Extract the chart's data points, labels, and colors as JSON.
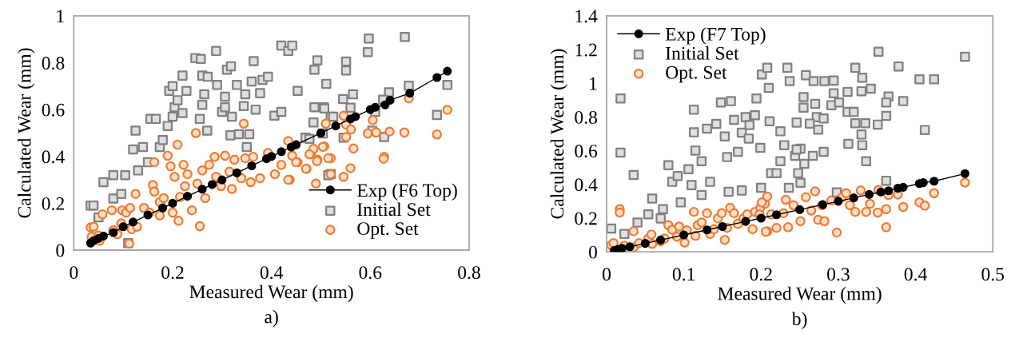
{
  "chart_data": [
    {
      "type": "scatter",
      "xlabel": "Measured Wear (mm)",
      "ylabel": "Calculated Wear (mm)",
      "annotations": [
        "a)"
      ],
      "xlim": [
        0,
        0.8
      ],
      "ylim": [
        0,
        1
      ],
      "xticks": [
        0,
        0.2,
        0.4,
        0.6,
        0.8
      ],
      "yticks": [
        0,
        0.2,
        0.4,
        0.6,
        0.8,
        1
      ],
      "grid": false,
      "legend": "bottom right",
      "series": [
        {
          "name": "Exp (F6 Top)",
          "type": "line",
          "marker": "circle",
          "line_style": "solid",
          "color": "#000000",
          "x": [
            0.034,
            0.04,
            0.05,
            0.06,
            0.08,
            0.1,
            0.12,
            0.15,
            0.18,
            0.2,
            0.23,
            0.26,
            0.28,
            0.3,
            0.33,
            0.36,
            0.39,
            0.4,
            0.42,
            0.44,
            0.45,
            0.5,
            0.53,
            0.56,
            0.57,
            0.6,
            0.61,
            0.63,
            0.64,
            0.68,
            0.735,
            0.756
          ],
          "values": [
            0.03,
            0.04,
            0.05,
            0.06,
            0.075,
            0.1,
            0.12,
            0.15,
            0.18,
            0.2,
            0.23,
            0.26,
            0.28,
            0.3,
            0.33,
            0.36,
            0.39,
            0.4,
            0.42,
            0.44,
            0.45,
            0.5,
            0.53,
            0.56,
            0.57,
            0.6,
            0.61,
            0.62,
            0.64,
            0.67,
            0.737,
            0.764
          ]
        },
        {
          "name": "Initial Set",
          "marker": "square",
          "color": "#808080",
          "x": [
            0.034,
            0.04,
            0.05,
            0.06,
            0.08,
            0.08,
            0.096,
            0.104,
            0.11,
            0.12,
            0.125,
            0.13,
            0.14,
            0.155,
            0.166,
            0.15,
            0.174,
            0.18,
            0.19,
            0.193,
            0.2,
            0.204,
            0.2,
            0.21,
            0.22,
            0.22,
            0.228,
            0.246,
            0.257,
            0.26,
            0.26,
            0.255,
            0.264,
            0.27,
            0.271,
            0.288,
            0.29,
            0.3,
            0.306,
            0.31,
            0.318,
            0.306,
            0.317,
            0.32,
            0.33,
            0.334,
            0.344,
            0.347,
            0.355,
            0.36,
            0.364,
            0.368,
            0.377,
            0.382,
            0.393,
            0.35,
            0.406,
            0.42,
            0.42,
            0.434,
            0.442,
            0.453,
            0.469,
            0.485,
            0.487,
            0.493,
            0.487,
            0.506,
            0.511,
            0.52,
            0.52,
            0.507,
            0.525,
            0.515,
            0.545,
            0.551,
            0.551,
            0.565,
            0.56,
            0.546,
            0.595,
            0.597,
            0.61,
            0.604,
            0.628,
            0.638,
            0.626,
            0.67,
            0.678,
            0.735,
            0.756,
            0.477,
            0.504
          ],
          "values": [
            0.19,
            0.19,
            0.14,
            0.29,
            0.32,
            0.22,
            0.24,
            0.32,
            0.03,
            0.43,
            0.51,
            0.34,
            0.44,
            0.56,
            0.56,
            0.375,
            0.44,
            0.47,
            0.53,
            0.68,
            0.7,
            0.61,
            0.57,
            0.64,
            0.585,
            0.745,
            0.68,
            0.82,
            0.816,
            0.745,
            0.62,
            0.56,
            0.665,
            0.51,
            0.74,
            0.85,
            0.705,
            0.59,
            0.655,
            0.77,
            0.785,
            0.61,
            0.49,
            0.57,
            0.705,
            0.495,
            0.615,
            0.665,
            0.495,
            0.72,
            0.807,
            0.6,
            0.67,
            0.727,
            0.74,
            0.44,
            0.574,
            0.59,
            0.873,
            0.85,
            0.873,
            0.68,
            0.48,
            0.545,
            0.77,
            0.81,
            0.61,
            0.61,
            0.71,
            0.57,
            0.325,
            0.605,
            0.57,
            0.32,
            0.645,
            0.805,
            0.767,
            0.665,
            0.608,
            0.48,
            0.845,
            0.903,
            0.59,
            0.51,
            0.483,
            0.674,
            0.642,
            0.91,
            0.702,
            0.577,
            0.705,
            0.475,
            0.498
          ]
        },
        {
          "name": "Opt. Set",
          "marker": "circle",
          "color": "#ed7d31",
          "x": [
            0.034,
            0.04,
            0.036,
            0.052,
            0.05,
            0.058,
            0.077,
            0.08,
            0.088,
            0.096,
            0.098,
            0.106,
            0.112,
            0.117,
            0.114,
            0.125,
            0.128,
            0.142,
            0.153,
            0.16,
            0.163,
            0.163,
            0.174,
            0.174,
            0.182,
            0.19,
            0.196,
            0.2,
            0.204,
            0.21,
            0.212,
            0.215,
            0.222,
            0.225,
            0.23,
            0.239,
            0.247,
            0.25,
            0.255,
            0.26,
            0.266,
            0.274,
            0.285,
            0.288,
            0.298,
            0.306,
            0.315,
            0.32,
            0.325,
            0.339,
            0.344,
            0.347,
            0.358,
            0.363,
            0.377,
            0.393,
            0.407,
            0.42,
            0.434,
            0.437,
            0.442,
            0.453,
            0.471,
            0.48,
            0.49,
            0.493,
            0.507,
            0.51,
            0.52,
            0.52,
            0.546,
            0.551,
            0.561,
            0.551,
            0.566,
            0.605,
            0.595,
            0.612,
            0.639,
            0.669,
            0.678,
            0.735,
            0.756,
            0.628,
            0.627,
            0.515,
            0.56,
            0.546,
            0.485,
            0.47,
            0.492,
            0.504,
            0.477,
            0.45,
            0.434
          ],
          "values": [
            0.097,
            0.1,
            0.057,
            0.04,
            0.062,
            0.153,
            0.17,
            0.085,
            0.068,
            0.114,
            0.17,
            0.16,
            0.028,
            0.09,
            0.18,
            0.24,
            0.1,
            0.18,
            0.16,
            0.278,
            0.375,
            0.25,
            0.205,
            0.148,
            0.222,
            0.403,
            0.358,
            0.16,
            0.313,
            0.45,
            0.125,
            0.227,
            0.364,
            0.273,
            0.324,
            0.17,
            0.5,
            0.284,
            0.102,
            0.34,
            0.222,
            0.364,
            0.398,
            0.313,
            0.273,
            0.403,
            0.335,
            0.261,
            0.386,
            0.307,
            0.54,
            0.392,
            0.29,
            0.398,
            0.307,
            0.415,
            0.324,
            0.364,
            0.466,
            0.3,
            0.403,
            0.375,
            0.347,
            0.41,
            0.284,
            0.386,
            0.443,
            0.54,
            0.392,
            0.324,
            0.574,
            0.536,
            0.515,
            0.483,
            0.434,
            0.555,
            0.498,
            0.502,
            0.506,
            0.502,
            0.648,
            0.494,
            0.599,
            0.398,
            0.39,
            0.392,
            0.35,
            0.313,
            0.432,
            0.347,
            0.38,
            0.441,
            0.409,
            0.375,
            0.3
          ]
        }
      ]
    },
    {
      "type": "scatter",
      "xlabel": "Measured Wear (mm)",
      "ylabel": "Calculated Wear (mm)",
      "annotations": [
        "b)"
      ],
      "xlim": [
        0,
        0.5
      ],
      "ylim": [
        0,
        1.4
      ],
      "xticks": [
        0,
        0.1,
        0.2,
        0.3,
        0.4,
        0.5
      ],
      "yticks": [
        0,
        0.2,
        0.4,
        0.6,
        0.8,
        1,
        1.2,
        1.4
      ],
      "grid": false,
      "legend": "top left",
      "series": [
        {
          "name": "Exp (F7 Top)",
          "type": "line",
          "marker": "circle",
          "line_style": "solid",
          "color": "#000000",
          "x": [
            0.01,
            0.015,
            0.02,
            0.03,
            0.05,
            0.07,
            0.1,
            0.13,
            0.15,
            0.18,
            0.2,
            0.22,
            0.25,
            0.28,
            0.3,
            0.32,
            0.34,
            0.355,
            0.365,
            0.377,
            0.384,
            0.405,
            0.41,
            0.424,
            0.464
          ],
          "values": [
            0.008,
            0.015,
            0.02,
            0.03,
            0.05,
            0.07,
            0.1,
            0.13,
            0.15,
            0.18,
            0.2,
            0.22,
            0.25,
            0.28,
            0.3,
            0.32,
            0.34,
            0.355,
            0.362,
            0.377,
            0.383,
            0.405,
            0.41,
            0.419,
            0.464
          ]
        },
        {
          "name": "Initial Set",
          "marker": "square",
          "color": "#808080",
          "x": [
            0.006,
            0.018,
            0.018,
            0.023,
            0.035,
            0.04,
            0.054,
            0.059,
            0.07,
            0.073,
            0.08,
            0.085,
            0.092,
            0.096,
            0.106,
            0.113,
            0.113,
            0.115,
            0.11,
            0.123,
            0.13,
            0.123,
            0.134,
            0.142,
            0.148,
            0.153,
            0.156,
            0.158,
            0.161,
            0.165,
            0.17,
            0.175,
            0.18,
            0.184,
            0.175,
            0.185,
            0.194,
            0.192,
            0.199,
            0.201,
            0.208,
            0.21,
            0.2,
            0.211,
            0.213,
            0.234,
            0.237,
            0.258,
            0.268,
            0.282,
            0.294,
            0.294,
            0.312,
            0.322,
            0.331,
            0.33,
            0.342,
            0.352,
            0.365,
            0.362,
            0.378,
            0.384,
            0.405,
            0.424,
            0.412,
            0.464,
            0.362,
            0.351,
            0.335,
            0.322,
            0.312,
            0.32,
            0.33,
            0.331,
            0.313,
            0.336,
            0.362,
            0.298,
            0.281,
            0.27,
            0.272,
            0.281,
            0.291,
            0.301,
            0.255,
            0.263,
            0.274,
            0.267,
            0.256,
            0.248,
            0.251,
            0.236,
            0.225,
            0.22,
            0.251,
            0.244,
            0.246,
            0.23,
            0.225,
            0.246,
            0.255
          ],
          "values": [
            0.138,
            0.91,
            0.589,
            0.106,
            0.456,
            0.174,
            0.222,
            0.316,
            0.198,
            0.253,
            0.514,
            0.415,
            0.45,
            0.293,
            0.49,
            0.843,
            0.709,
            0.601,
            0.396,
            0.538,
            0.731,
            0.337,
            0.415,
            0.759,
            0.886,
            0.685,
            0.562,
            0.356,
            0.894,
            0.783,
            0.593,
            0.707,
            0.799,
            0.672,
            0.364,
            0.752,
            0.91,
            0.81,
            0.617,
            1.052,
            1.092,
            0.973,
            0.38,
            0.775,
            0.467,
            1.092,
            1.013,
            1.048,
            1.013,
            1.013,
            1.016,
            0.941,
            0.949,
            1.092,
            1.033,
            0.953,
            0.968,
            1.187,
            0.922,
            0.886,
            1.1,
            0.894,
            1.024,
            1.024,
            0.723,
            1.158,
            0.807,
            0.755,
            0.763,
            0.763,
            0.83,
            0.83,
            0.696,
            0.633,
            0.641,
            0.538,
            0.422,
            0.353,
            0.593,
            0.878,
            0.799,
            0.791,
            0.87,
            0.886,
            0.918,
            0.761,
            0.725,
            0.57,
            0.522,
            0.467,
            0.41,
            0.38,
            0.538,
            0.467,
            0.612,
            0.57,
            0.607,
            0.633,
            0.715,
            0.767,
            0.855
          ]
        },
        {
          "name": "Opt. Set",
          "marker": "circle",
          "color": "#ed7d31",
          "x": [
            0.006,
            0.009,
            0.017,
            0.017,
            0.023,
            0.028,
            0.035,
            0.035,
            0.042,
            0.054,
            0.058,
            0.059,
            0.07,
            0.075,
            0.08,
            0.085,
            0.091,
            0.094,
            0.101,
            0.104,
            0.113,
            0.115,
            0.118,
            0.123,
            0.13,
            0.134,
            0.139,
            0.144,
            0.149,
            0.153,
            0.156,
            0.16,
            0.165,
            0.17,
            0.177,
            0.182,
            0.189,
            0.192,
            0.199,
            0.205,
            0.208,
            0.208,
            0.213,
            0.201,
            0.206,
            0.22,
            0.232,
            0.235,
            0.242,
            0.251,
            0.258,
            0.27,
            0.274,
            0.282,
            0.279,
            0.291,
            0.298,
            0.305,
            0.315,
            0.322,
            0.329,
            0.336,
            0.341,
            0.351,
            0.352,
            0.362,
            0.362,
            0.365,
            0.377,
            0.384,
            0.405,
            0.412,
            0.424,
            0.464,
            0.31,
            0.265,
            0.229,
            0.198
          ],
          "values": [
            0.04,
            0.052,
            0.253,
            0.233,
            0.036,
            0.008,
            0.122,
            0.027,
            0.052,
            0.079,
            0.103,
            0.047,
            0.063,
            0.079,
            0.158,
            0.131,
            0.09,
            0.15,
            0.055,
            0.127,
            0.237,
            0.095,
            0.158,
            0.174,
            0.229,
            0.106,
            0.134,
            0.198,
            0.229,
            0.071,
            0.142,
            0.261,
            0.229,
            0.166,
            0.198,
            0.222,
            0.134,
            0.237,
            0.261,
            0.285,
            0.328,
            0.122,
            0.222,
            0.293,
            0.119,
            0.142,
            0.309,
            0.146,
            0.277,
            0.182,
            0.324,
            0.359,
            0.19,
            0.182,
            0.277,
            0.305,
            0.114,
            0.324,
            0.277,
            0.237,
            0.364,
            0.237,
            0.285,
            0.233,
            0.367,
            0.253,
            0.146,
            0.337,
            0.34,
            0.266,
            0.293,
            0.274,
            0.348,
            0.411,
            0.348,
            0.245,
            0.229,
            0.222
          ]
        }
      ]
    }
  ]
}
